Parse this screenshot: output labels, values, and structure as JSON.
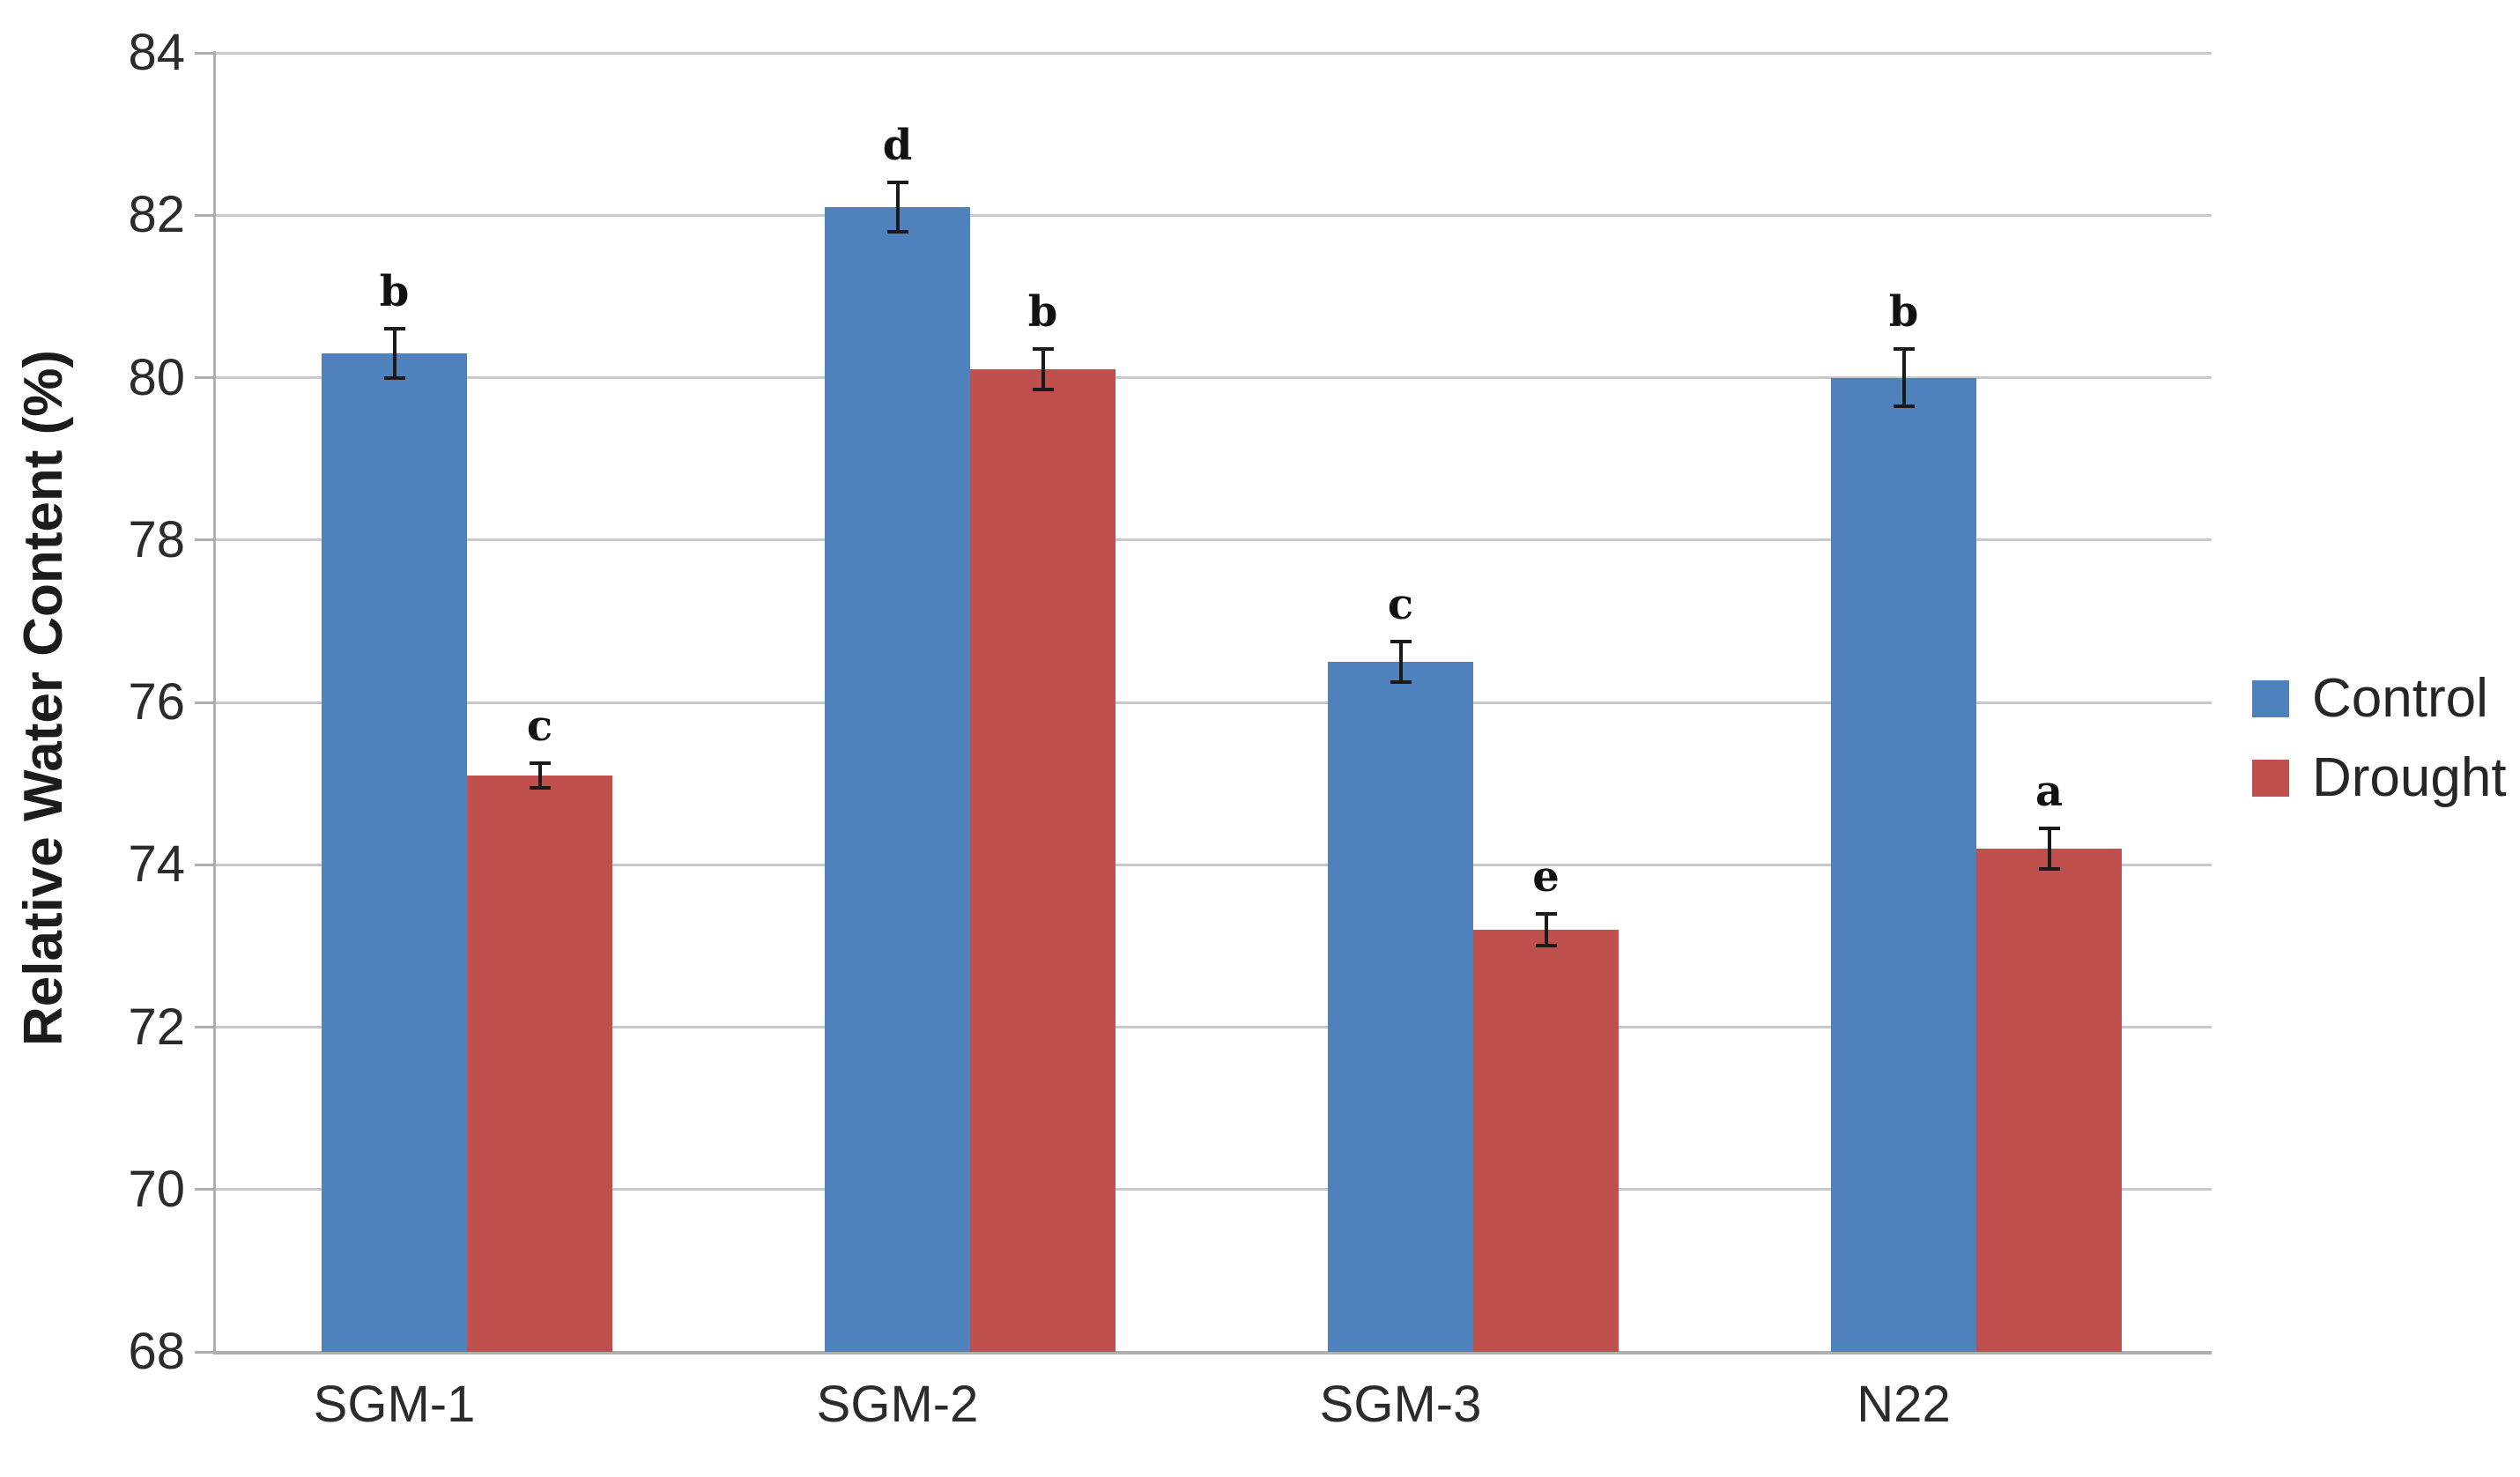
{
  "chart_data": {
    "type": "bar",
    "title": "",
    "xlabel": "",
    "ylabel": "Relative Water Content (%)",
    "ylim": [
      68,
      84
    ],
    "yticks": [
      84,
      82,
      80,
      78,
      76,
      74,
      72,
      70,
      68
    ],
    "grid": "horizontal",
    "legend_position": "right",
    "categories": [
      "SGM-1",
      "SGM-2",
      "SGM-3",
      "N22"
    ],
    "series": [
      {
        "name": "Control",
        "color": "#4F81BD",
        "values": [
          80.3,
          82.1,
          76.5,
          80.0
        ],
        "error_bars": [
          0.3,
          0.3,
          0.25,
          0.35
        ],
        "sig_letters": [
          "b",
          "d",
          "c",
          "b"
        ]
      },
      {
        "name": "Drought",
        "color": "#C0504D",
        "values": [
          75.1,
          80.1,
          73.2,
          74.2
        ],
        "error_bars": [
          0.15,
          0.25,
          0.2,
          0.25
        ],
        "sig_letters": [
          "c",
          "b",
          "e",
          "a"
        ]
      }
    ]
  },
  "colors": {
    "gridline": "#c9c9c9",
    "axis": "#aeaeae",
    "error_bar": "#1a1a1a",
    "text": "#2b2b2b",
    "background": "#ffffff"
  }
}
